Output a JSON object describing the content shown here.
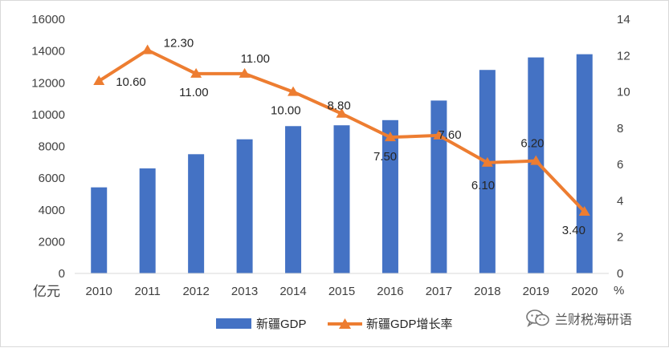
{
  "chart_data": {
    "type": "bar+line",
    "categories": [
      "2010",
      "2011",
      "2012",
      "2013",
      "2014",
      "2015",
      "2016",
      "2017",
      "2018",
      "2019",
      "2020"
    ],
    "series": [
      {
        "name": "新疆GDP",
        "type": "bar",
        "axis": "left",
        "color": "#4472c4",
        "values": [
          5418,
          6610,
          7505,
          8443,
          9273,
          9325,
          9650,
          10882,
          12809,
          13597,
          13798
        ]
      },
      {
        "name": "新疆GDP增长率",
        "type": "line",
        "axis": "right",
        "color": "#ed7d31",
        "marker": "triangle",
        "values": [
          10.6,
          12.3,
          11.0,
          11.0,
          10.0,
          8.8,
          7.5,
          7.6,
          6.1,
          6.2,
          3.4
        ],
        "labels": [
          "10.60",
          "12.30",
          "11.00",
          "11.00",
          "10.00",
          "8.80",
          "7.50",
          "7.60",
          "6.10",
          "6.20",
          "3.40"
        ]
      }
    ],
    "left_axis": {
      "unit": "亿元",
      "range": [
        0,
        16000
      ],
      "ticks": [
        "0",
        "2000",
        "4000",
        "6000",
        "8000",
        "10000",
        "12000",
        "14000",
        "16000"
      ]
    },
    "right_axis": {
      "unit": "%",
      "range": [
        0,
        14
      ],
      "ticks": [
        "0",
        "2",
        "4",
        "6",
        "8",
        "10",
        "12",
        "14"
      ]
    },
    "grid": false,
    "legend": "bottom"
  },
  "watermark": {
    "icon": "wechat-icon",
    "text": "兰财税海研语"
  }
}
